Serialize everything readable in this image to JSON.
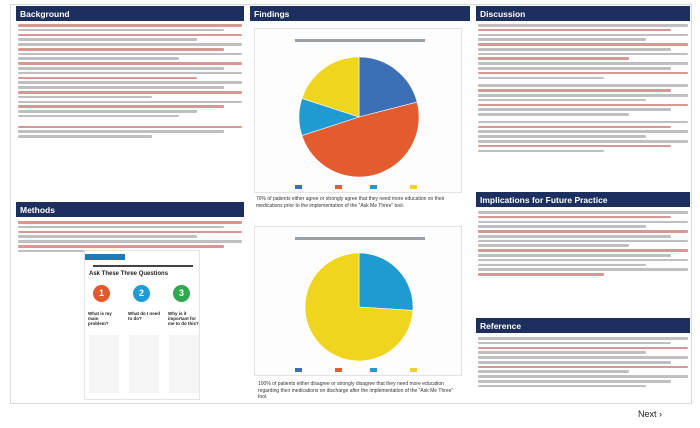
{
  "sections": {
    "background": "Background",
    "findings": "Findings",
    "discussion": "Discussion",
    "methods": "Methods",
    "implications": "Implications for Future Practice",
    "reference": "Reference"
  },
  "findings": {
    "caption1": "70% of patients either agree or strongly agree that they need more education on their medications prior to the implementation of the \"Ask Me Three\" tool.",
    "caption2": "100% of patients either disagree or strongly disagree that they need more education regarding their medications on discharge after the implementation of the \"Ask Me Three\" tool."
  },
  "methods_graphic": {
    "title": "Ask These Three Questions",
    "numbers": [
      "1",
      "2",
      "3"
    ],
    "q1": "What is my main problem?",
    "q2": "What do I need to do?",
    "q3": "Why is it important for me to do this?"
  },
  "navigation": {
    "next_label": "Next ›"
  },
  "colors": {
    "header_bg": "#1c2f5e",
    "strongly_agree": "#3b6fb6",
    "agree": "#e35b2e",
    "strongly_disagree": "#1f9bd1",
    "disagree": "#f0d51f",
    "circle1": "#e05a2b",
    "circle2": "#1e9ad6",
    "circle3": "#2fa84f"
  }
}
